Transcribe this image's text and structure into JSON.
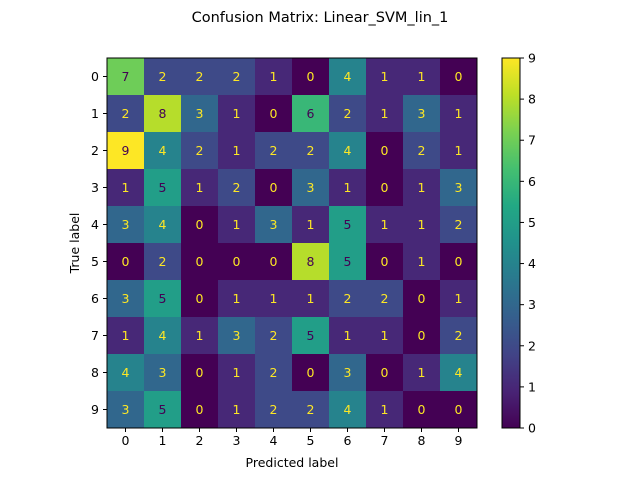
{
  "chart_data": {
    "type": "heatmap",
    "title": "Confusion Matrix: Linear_SVM_lin_1",
    "xlabel": "Predicted label",
    "ylabel": "True label",
    "x_categories": [
      "0",
      "1",
      "2",
      "3",
      "4",
      "5",
      "6",
      "7",
      "8",
      "9"
    ],
    "y_categories": [
      "0",
      "1",
      "2",
      "3",
      "4",
      "5",
      "6",
      "7",
      "8",
      "9"
    ],
    "matrix": [
      [
        7,
        2,
        2,
        2,
        1,
        0,
        4,
        1,
        1,
        0
      ],
      [
        2,
        8,
        3,
        1,
        0,
        6,
        2,
        1,
        3,
        1
      ],
      [
        9,
        4,
        2,
        1,
        2,
        2,
        4,
        0,
        2,
        1
      ],
      [
        1,
        5,
        1,
        2,
        0,
        3,
        1,
        0,
        1,
        3
      ],
      [
        3,
        4,
        0,
        1,
        3,
        1,
        5,
        1,
        1,
        2
      ],
      [
        0,
        2,
        0,
        0,
        0,
        8,
        5,
        0,
        1,
        0
      ],
      [
        3,
        5,
        0,
        1,
        1,
        1,
        2,
        2,
        0,
        1
      ],
      [
        1,
        4,
        1,
        3,
        2,
        5,
        1,
        1,
        0,
        2
      ],
      [
        4,
        3,
        0,
        1,
        2,
        0,
        3,
        0,
        1,
        4
      ],
      [
        3,
        5,
        0,
        1,
        2,
        2,
        4,
        1,
        0,
        0
      ]
    ],
    "colorbar_range": [
      0,
      9
    ],
    "colorbar_ticks": [
      "0",
      "1",
      "2",
      "3",
      "4",
      "5",
      "6",
      "7",
      "8",
      "9"
    ],
    "colormap": "viridis",
    "text_color_light": "#fde725",
    "text_color_dark": "#440154",
    "grid": false
  }
}
